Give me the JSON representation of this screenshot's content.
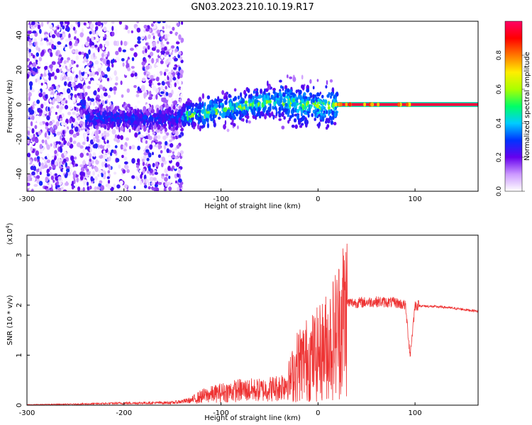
{
  "title": "GN03.2023.210.10.19.R17",
  "chart_data": [
    {
      "type": "heatmap",
      "xlabel": "Height of straight line (km)",
      "ylabel": "Frequency (Hz)",
      "xlim": [
        -300,
        165
      ],
      "ylim": [
        -50,
        48
      ],
      "xticks": [
        -300,
        -200,
        -100,
        0,
        100
      ],
      "yticks": [
        -40,
        -20,
        0,
        20,
        40
      ],
      "colorbar": {
        "label": "Normalized spectral amplitude",
        "range": [
          0,
          1
        ],
        "ticks": [
          "0.0",
          "0.2",
          "0.4",
          "0.6",
          "0.8"
        ],
        "colors": [
          "#ffffff",
          "#cc99ff",
          "#6600ee",
          "#0033ff",
          "#00ccff",
          "#00ff66",
          "#aaff00",
          "#ffee00",
          "#ff7700",
          "#ff0000",
          "#ff0066"
        ]
      },
      "features": {
        "noise_region_x": [
          -300,
          -140
        ],
        "signal_band_center_hz": [
          [
            -240,
            -8
          ],
          [
            -200,
            -8
          ],
          [
            -150,
            -8
          ],
          [
            -120,
            -5
          ],
          [
            -100,
            -3
          ],
          [
            -80,
            -1
          ],
          [
            -60,
            1
          ],
          [
            -40,
            2
          ],
          [
            -20,
            0
          ],
          [
            0,
            -1
          ],
          [
            18,
            0
          ],
          [
            60,
            0
          ],
          [
            100,
            0
          ],
          [
            165,
            0
          ]
        ],
        "narrowband_tone_x": [
          18,
          165
        ],
        "narrowband_tone_hz": 0
      }
    },
    {
      "type": "line",
      "xlabel": "Height of straight line (km)",
      "ylabel": "SNR (10 * v/v)",
      "y_multiplier": "(x10",
      "y_multiplier_exp": "4",
      "y_multiplier_close": ")",
      "xlim": [
        -300,
        165
      ],
      "ylim": [
        0,
        3.4
      ],
      "xticks": [
        -300,
        -200,
        -100,
        0,
        100
      ],
      "yticks": [
        0,
        1,
        2,
        3
      ],
      "color": "#ee3333",
      "series": [
        {
          "x": [
            -300,
            -250,
            -200,
            -150,
            -130,
            -120,
            -100,
            -80,
            -60,
            -40,
            -30,
            -20,
            -10,
            0,
            10,
            20,
            25,
            30,
            40,
            60,
            80,
            90,
            95,
            100,
            110,
            130,
            165
          ],
          "y": [
            0.01,
            0.02,
            0.04,
            0.05,
            0.1,
            0.18,
            0.25,
            0.3,
            0.3,
            0.35,
            0.5,
            0.9,
            1.0,
            1.1,
            1.3,
            1.6,
            1.9,
            2.05,
            2.05,
            2.07,
            2.05,
            2.0,
            1.0,
            2.0,
            1.98,
            1.96,
            1.88
          ]
        }
      ]
    }
  ]
}
